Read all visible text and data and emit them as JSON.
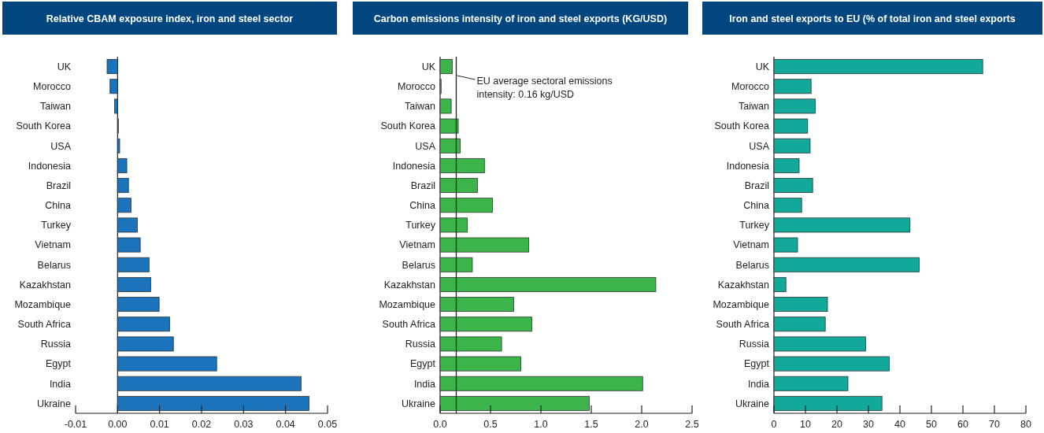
{
  "chart_data": [
    {
      "type": "bar",
      "orientation": "horizontal",
      "title": "Relative CBAM exposure index, iron and steel sector",
      "color": "#1a73bb",
      "categories": [
        "UK",
        "Morocco",
        "Taiwan",
        "South Korea",
        "USA",
        "Indonesia",
        "Brazil",
        "China",
        "Turkey",
        "Vietnam",
        "Belarus",
        "Kazakhstan",
        "Mozambique",
        "South Africa",
        "Russia",
        "Egypt",
        "India",
        "Ukraine"
      ],
      "values": [
        -0.0025,
        -0.0018,
        -0.0007,
        0.0002,
        0.0005,
        0.0022,
        0.0026,
        0.0032,
        0.0047,
        0.0054,
        0.0075,
        0.0079,
        0.0099,
        0.0124,
        0.0133,
        0.0236,
        0.0437,
        0.0456
      ],
      "xlim": [
        -0.01,
        0.05
      ],
      "xticks": [
        {
          "value": -0.01,
          "label": "-0.01"
        },
        {
          "value": 0,
          "label": "0.00"
        },
        {
          "value": 0.01,
          "label": "0.01"
        },
        {
          "value": 0.02,
          "label": "0.02"
        },
        {
          "value": 0.03,
          "label": "0.03"
        },
        {
          "value": 0.04,
          "label": "0.04"
        },
        {
          "value": 0.05,
          "label": "0.05"
        }
      ]
    },
    {
      "type": "bar",
      "orientation": "horizontal",
      "title": "Carbon emissions intensity of iron and steel exports (KG/USD)",
      "color": "#3bb54a",
      "categories": [
        "UK",
        "Morocco",
        "Taiwan",
        "South Korea",
        "USA",
        "Indonesia",
        "Brazil",
        "China",
        "Turkey",
        "Vietnam",
        "Belarus",
        "Kazakhstan",
        "Mozambique",
        "South Africa",
        "Russia",
        "Egypt",
        "India",
        "Ukraine"
      ],
      "values": [
        0.12,
        0.01,
        0.11,
        0.18,
        0.2,
        0.44,
        0.37,
        0.52,
        0.27,
        0.88,
        0.32,
        2.14,
        0.73,
        0.91,
        0.61,
        0.8,
        2.01,
        1.48
      ],
      "xlim": [
        0,
        2.5
      ],
      "xticks": [
        {
          "value": 0,
          "label": "0.0"
        },
        {
          "value": 0.5,
          "label": "0.5"
        },
        {
          "value": 1,
          "label": "1.0"
        },
        {
          "value": 1.5,
          "label": "1.5"
        },
        {
          "value": 2,
          "label": "2.0"
        },
        {
          "value": 2.5,
          "label": "2.5"
        }
      ],
      "ref_lines": [
        {
          "axis": "x",
          "value": 0.16,
          "label": "EU average sectoral emissions intensity: 0.16 kg/USD",
          "color": "#222222"
        }
      ]
    },
    {
      "type": "bar",
      "orientation": "horizontal",
      "title": "Iron and steel exports to EU (% of total iron and steel exports",
      "color": "#12a89a",
      "categories": [
        "UK",
        "Morocco",
        "Taiwan",
        "South Korea",
        "USA",
        "Indonesia",
        "Brazil",
        "China",
        "Turkey",
        "Vietnam",
        "Belarus",
        "Kazakhstan",
        "Mozambique",
        "South Africa",
        "Russia",
        "Egypt",
        "India",
        "Ukraine"
      ],
      "values": [
        66.3,
        11.8,
        13.1,
        10.7,
        11.5,
        8.0,
        12.3,
        8.8,
        43.2,
        7.5,
        46.1,
        3.8,
        17.0,
        16.3,
        29.1,
        36.6,
        23.5,
        34.3
      ],
      "xlim": [
        0,
        80
      ],
      "xticks": [
        0,
        10,
        20,
        30,
        40,
        50,
        60,
        70,
        80
      ]
    }
  ]
}
